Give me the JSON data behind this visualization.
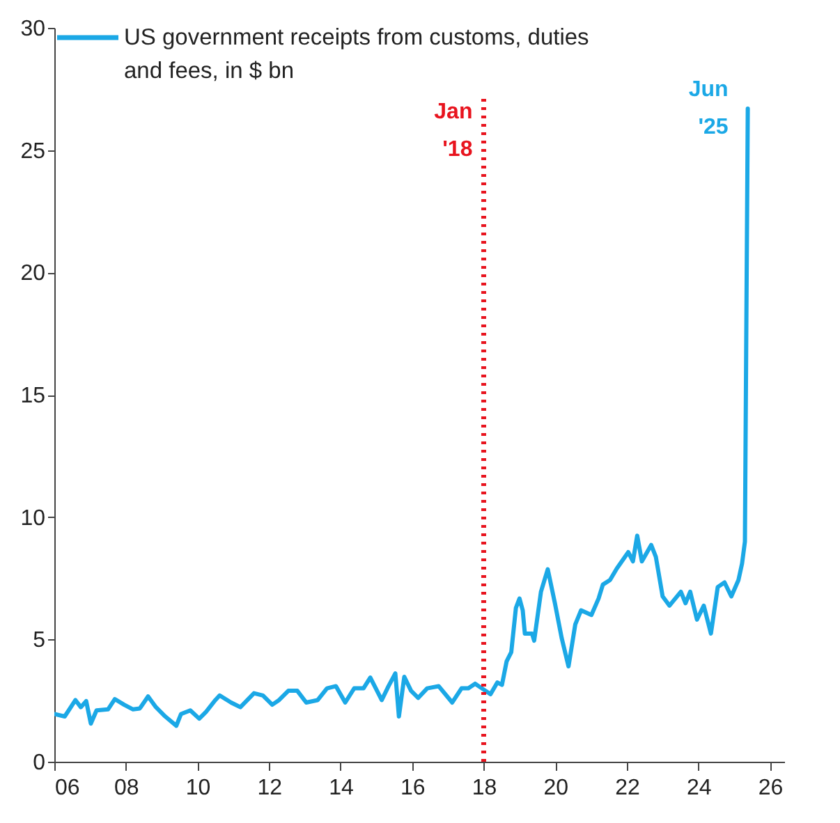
{
  "chart_data": {
    "type": "line",
    "x": [
      2006.0,
      2006.29,
      2006.59,
      2006.74,
      2006.89,
      2007.02,
      2007.18,
      2007.5,
      2007.69,
      2007.95,
      2008.2,
      2008.39,
      2008.62,
      2008.84,
      2009.1,
      2009.41,
      2009.54,
      2009.8,
      2010.05,
      2010.24,
      2010.5,
      2010.62,
      2010.94,
      2011.2,
      2011.58,
      2011.83,
      2012.09,
      2012.28,
      2012.54,
      2012.79,
      2013.04,
      2013.36,
      2013.62,
      2013.87,
      2014.13,
      2014.38,
      2014.64,
      2014.83,
      2015.15,
      2015.34,
      2015.53,
      2015.63,
      2015.78,
      2015.97,
      2016.17,
      2016.42,
      2016.74,
      2017.12,
      2017.38,
      2017.57,
      2017.76,
      2018.0,
      2018.19,
      2018.38,
      2018.51,
      2018.64,
      2018.77,
      2018.9,
      2019.0,
      2019.09,
      2019.15,
      2019.35,
      2019.41,
      2019.6,
      2019.79,
      2019.99,
      2020.18,
      2020.37,
      2020.56,
      2020.72,
      2021.01,
      2021.21,
      2021.33,
      2021.53,
      2021.72,
      2022.04,
      2022.17,
      2022.29,
      2022.42,
      2022.68,
      2022.81,
      2023.0,
      2023.19,
      2023.51,
      2023.64,
      2023.77,
      2023.96,
      2024.15,
      2024.35,
      2024.54,
      2024.73,
      2024.92,
      2025.12,
      2025.22,
      2025.3,
      2025.38
    ],
    "series": [
      {
        "name": "US government receipts from customs, duties and fees, in $ bn",
        "color": "#1ba8e6",
        "values": [
          1.95,
          1.85,
          2.52,
          2.23,
          2.48,
          1.56,
          2.1,
          2.14,
          2.56,
          2.33,
          2.14,
          2.18,
          2.67,
          2.23,
          1.85,
          1.47,
          1.95,
          2.1,
          1.76,
          2.04,
          2.52,
          2.71,
          2.42,
          2.23,
          2.8,
          2.71,
          2.33,
          2.52,
          2.9,
          2.9,
          2.42,
          2.52,
          3.0,
          3.09,
          2.42,
          3.0,
          3.0,
          3.44,
          2.52,
          3.09,
          3.61,
          1.85,
          3.47,
          2.9,
          2.61,
          3.0,
          3.09,
          2.42,
          3.0,
          3.0,
          3.19,
          2.95,
          2.76,
          3.24,
          3.14,
          4.1,
          4.48,
          6.29,
          6.67,
          6.19,
          5.24,
          5.24,
          4.95,
          6.95,
          7.87,
          6.48,
          5.05,
          3.9,
          5.62,
          6.19,
          6.0,
          6.67,
          7.24,
          7.43,
          7.9,
          8.57,
          8.19,
          9.24,
          8.19,
          8.86,
          8.38,
          6.76,
          6.38,
          6.95,
          6.48,
          6.95,
          5.81,
          6.38,
          5.24,
          7.14,
          7.33,
          6.76,
          7.43,
          8.1,
          9.0,
          26.7
        ]
      }
    ],
    "xlim": [
      2006,
      2026.4
    ],
    "xticks": [
      {
        "value": 2006,
        "label": "06"
      },
      {
        "value": 2008,
        "label": "08"
      },
      {
        "value": 2010,
        "label": "10"
      },
      {
        "value": 2012,
        "label": "12"
      },
      {
        "value": 2014,
        "label": "14"
      },
      {
        "value": 2016,
        "label": "16"
      },
      {
        "value": 2018,
        "label": "18"
      },
      {
        "value": 2020,
        "label": "20"
      },
      {
        "value": 2022,
        "label": "22"
      },
      {
        "value": 2024,
        "label": "24"
      },
      {
        "value": 2026,
        "label": "26"
      }
    ],
    "ylim": [
      0,
      30
    ],
    "yticks": [
      0,
      5,
      10,
      15,
      20,
      25,
      30
    ],
    "ref_lines": [
      {
        "axis": "x",
        "value": 2018,
        "label": "Jan '18",
        "color": "#e8141e",
        "line_style": "dotted"
      }
    ],
    "annotations": [
      {
        "text": "Jun '25",
        "x": 2025.38,
        "y": 26.7
      }
    ],
    "legend": "top left",
    "grid": false
  }
}
